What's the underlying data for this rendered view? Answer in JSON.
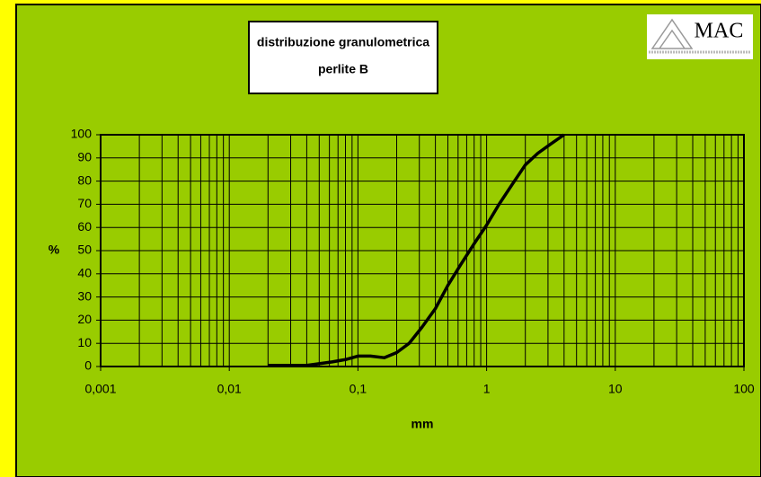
{
  "chart_data": {
    "type": "line",
    "title": "distribuzione granulometrica",
    "subtitle": "perlite B",
    "logo": "MAC",
    "x_label": "mm",
    "y_label": "%",
    "xscale": "log",
    "minor_grid": true,
    "grid": true,
    "xlim": [
      0.001,
      100
    ],
    "xticks": [
      {
        "value": 0.001,
        "label": "0,001"
      },
      {
        "value": 0.01,
        "label": "0,01"
      },
      {
        "value": 0.1,
        "label": "0,1"
      },
      1,
      10,
      100
    ],
    "ylim": [
      0,
      100
    ],
    "yticks": [
      0,
      10,
      20,
      30,
      40,
      50,
      60,
      70,
      80,
      90,
      100
    ],
    "series": [
      {
        "name": null,
        "color": "#000000",
        "x": [
          0.02,
          0.04,
          0.063,
          0.08,
          0.1,
          0.125,
          0.16,
          0.2,
          0.25,
          0.315,
          0.4,
          0.5,
          0.63,
          0.8,
          1,
          1.25,
          1.6,
          2,
          2.5,
          3.15,
          4
        ],
        "values": [
          0.5,
          0.5,
          2,
          3,
          4.5,
          4.5,
          3.8,
          6,
          10,
          17,
          25,
          35,
          44,
          53,
          61,
          70,
          79,
          87,
          92,
          96,
          100
        ]
      }
    ]
  }
}
